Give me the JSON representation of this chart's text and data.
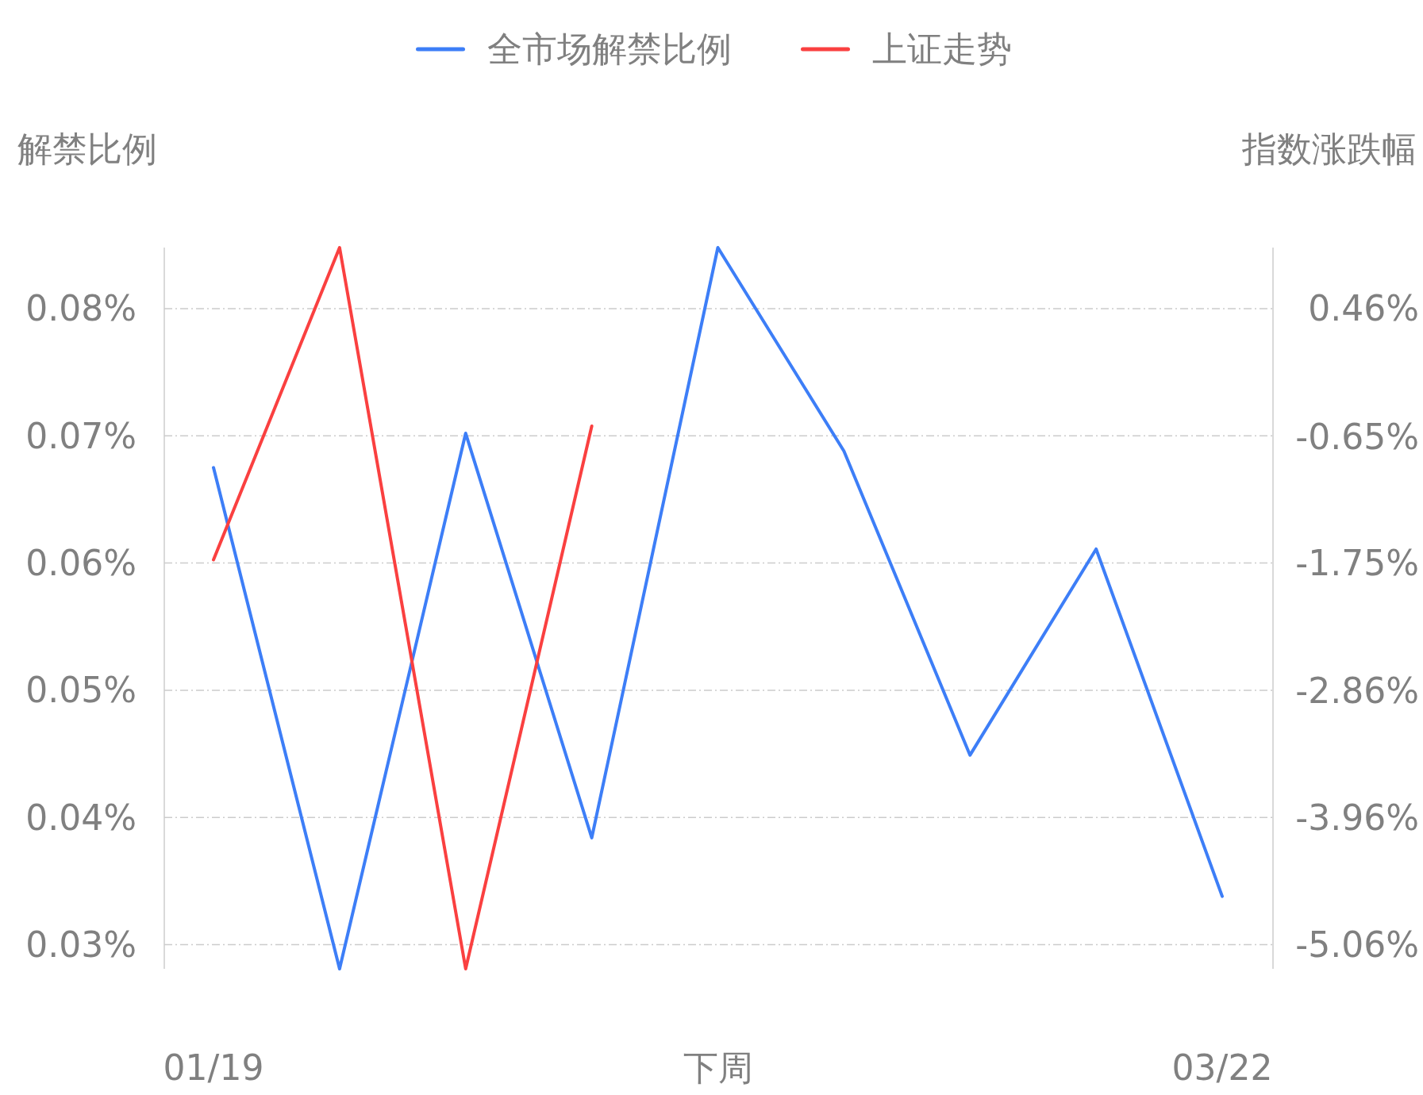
{
  "chart_data": {
    "type": "line",
    "categories": [
      "01/19",
      null,
      null,
      null,
      "下周",
      null,
      null,
      null,
      "03/22"
    ],
    "ylabel": "解禁比例",
    "y2label": "指数涨跌幅",
    "series": [
      {
        "name": "全市场解禁比例",
        "color": "#3d7ef7",
        "values": [
          0.0675,
          0.0281,
          0.0702,
          0.0384,
          0.0848,
          0.0688,
          0.0449,
          0.0611,
          0.0338
        ]
      },
      {
        "name": "上证走势",
        "color": "#fa4040",
        "axis": "y2",
        "values": [
          -1.72,
          0.99,
          -5.27,
          -0.56,
          null,
          null,
          null,
          null,
          null
        ]
      }
    ],
    "yticks": [
      {
        "value": 0.03,
        "label": "0.03%"
      },
      {
        "value": 0.04,
        "label": "0.04%"
      },
      {
        "value": 0.05,
        "label": "0.05%"
      },
      {
        "value": 0.06,
        "label": "0.06%"
      },
      {
        "value": 0.07,
        "label": "0.07%"
      },
      {
        "value": 0.08,
        "label": "0.08%"
      }
    ],
    "y2ticks": [
      {
        "value": -5.06,
        "label": "-5.06%"
      },
      {
        "value": -3.96,
        "label": "-3.96%"
      },
      {
        "value": -2.86,
        "label": "-2.86%"
      },
      {
        "value": -1.75,
        "label": "-1.75%"
      },
      {
        "value": -0.65,
        "label": "-0.65%"
      },
      {
        "value": 0.46,
        "label": "0.46%"
      }
    ],
    "ylim": [
      0.0281,
      0.0848
    ],
    "y2lim": [
      -5.27,
      0.99
    ],
    "grid": "y",
    "legend": "top",
    "marker": "none",
    "line_style": "solid"
  }
}
